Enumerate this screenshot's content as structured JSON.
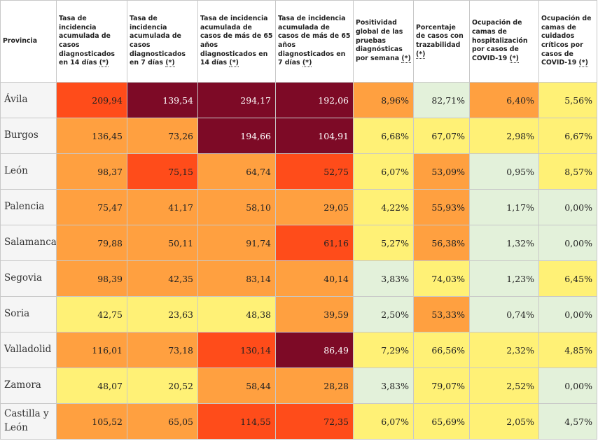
{
  "headers": [
    {
      "text": "Provincia",
      "star": ""
    },
    {
      "text": "Tasa de incidencia acumulada de casos diagnosticados en 14 días ",
      "star": "(*)"
    },
    {
      "text": "Tasa de incidencia acumulada de casos diagnosticados en 7 días ",
      "star": "(*)"
    },
    {
      "text": "Tasa de incidencia acumulada de casos de más de 65 años diagnosticados en 14 días ",
      "star": "(*)"
    },
    {
      "text": "Tasa de incidencia acumulada de casos de más de 65 años diagnosticados en 7 días ",
      "star": "(*)"
    },
    {
      "text": "Positividad global de las pruebas diagnósticas por semana ",
      "star": "(*)"
    },
    {
      "text": "Porcentaje de casos con trazabilidad ",
      "star": "(*)"
    },
    {
      "text": "Ocupación de camas de hospitalización por casos de COVID-19 ",
      "star": "(*)"
    },
    {
      "text": "Ocupación de camas de cuidados críticos por casos de COVID-19 ",
      "star": "(*)"
    }
  ],
  "rows": [
    {
      "province": "Ávila",
      "cells": [
        {
          "v": "209,94",
          "level": 3
        },
        {
          "v": "139,54",
          "level": 4
        },
        {
          "v": "294,17",
          "level": 4
        },
        {
          "v": "192,06",
          "level": 4
        },
        {
          "v": "8,96%",
          "level": 2
        },
        {
          "v": "82,71%",
          "level": 0
        },
        {
          "v": "6,40%",
          "level": 2
        },
        {
          "v": "5,56%",
          "level": 1
        }
      ]
    },
    {
      "province": "Burgos",
      "cells": [
        {
          "v": "136,45",
          "level": 2
        },
        {
          "v": "73,26",
          "level": 2
        },
        {
          "v": "194,66",
          "level": 4
        },
        {
          "v": "104,91",
          "level": 4
        },
        {
          "v": "6,68%",
          "level": 1
        },
        {
          "v": "67,07%",
          "level": 1
        },
        {
          "v": "2,98%",
          "level": 1
        },
        {
          "v": "6,67%",
          "level": 1
        }
      ]
    },
    {
      "province": "León",
      "cells": [
        {
          "v": "98,37",
          "level": 2
        },
        {
          "v": "75,15",
          "level": 3
        },
        {
          "v": "64,74",
          "level": 2
        },
        {
          "v": "52,75",
          "level": 3
        },
        {
          "v": "6,07%",
          "level": 1
        },
        {
          "v": "53,09%",
          "level": 2
        },
        {
          "v": "0,95%",
          "level": 0
        },
        {
          "v": "8,57%",
          "level": 1
        }
      ]
    },
    {
      "province": "Palencia",
      "cells": [
        {
          "v": "75,47",
          "level": 2
        },
        {
          "v": "41,17",
          "level": 2
        },
        {
          "v": "58,10",
          "level": 2
        },
        {
          "v": "29,05",
          "level": 2
        },
        {
          "v": "4,22%",
          "level": 1
        },
        {
          "v": "55,93%",
          "level": 2
        },
        {
          "v": "1,17%",
          "level": 0
        },
        {
          "v": "0,00%",
          "level": 0
        }
      ]
    },
    {
      "province": "Salamanca",
      "cells": [
        {
          "v": "79,88",
          "level": 2
        },
        {
          "v": "50,11",
          "level": 2
        },
        {
          "v": "91,74",
          "level": 2
        },
        {
          "v": "61,16",
          "level": 3
        },
        {
          "v": "5,27%",
          "level": 1
        },
        {
          "v": "56,38%",
          "level": 2
        },
        {
          "v": "1,32%",
          "level": 0
        },
        {
          "v": "0,00%",
          "level": 0
        }
      ]
    },
    {
      "province": "Segovia",
      "cells": [
        {
          "v": "98,39",
          "level": 2
        },
        {
          "v": "42,35",
          "level": 2
        },
        {
          "v": "83,14",
          "level": 2
        },
        {
          "v": "40,14",
          "level": 2
        },
        {
          "v": "3,83%",
          "level": 0
        },
        {
          "v": "74,03%",
          "level": 1
        },
        {
          "v": "1,23%",
          "level": 0
        },
        {
          "v": "6,45%",
          "level": 1
        }
      ]
    },
    {
      "province": "Soria",
      "cells": [
        {
          "v": "42,75",
          "level": 1
        },
        {
          "v": "23,63",
          "level": 1
        },
        {
          "v": "48,38",
          "level": 1
        },
        {
          "v": "39,59",
          "level": 2
        },
        {
          "v": "2,50%",
          "level": 0
        },
        {
          "v": "53,33%",
          "level": 2
        },
        {
          "v": "0,74%",
          "level": 0
        },
        {
          "v": "0,00%",
          "level": 0
        }
      ]
    },
    {
      "province": "Valladolid",
      "cells": [
        {
          "v": "116,01",
          "level": 2
        },
        {
          "v": "73,18",
          "level": 2
        },
        {
          "v": "130,14",
          "level": 3
        },
        {
          "v": "86,49",
          "level": 4
        },
        {
          "v": "7,29%",
          "level": 1
        },
        {
          "v": "66,56%",
          "level": 1
        },
        {
          "v": "2,32%",
          "level": 1
        },
        {
          "v": "4,85%",
          "level": 1
        }
      ]
    },
    {
      "province": "Zamora",
      "cells": [
        {
          "v": "48,07",
          "level": 1
        },
        {
          "v": "20,52",
          "level": 1
        },
        {
          "v": "58,44",
          "level": 2
        },
        {
          "v": "28,28",
          "level": 2
        },
        {
          "v": "3,83%",
          "level": 0
        },
        {
          "v": "79,07%",
          "level": 1
        },
        {
          "v": "2,52%",
          "level": 1
        },
        {
          "v": "0,00%",
          "level": 0
        }
      ]
    },
    {
      "province": "Castilla y León",
      "cells": [
        {
          "v": "105,52",
          "level": 2
        },
        {
          "v": "65,05",
          "level": 2
        },
        {
          "v": "114,55",
          "level": 3
        },
        {
          "v": "72,35",
          "level": 3
        },
        {
          "v": "6,07%",
          "level": 1
        },
        {
          "v": "65,69%",
          "level": 1
        },
        {
          "v": "2,05%",
          "level": 1
        },
        {
          "v": "4,57%",
          "level": 0
        }
      ]
    }
  ],
  "level_colors": {
    "0": "#e3f1da",
    "1": "#fff176",
    "2": "#ffa040",
    "3": "#ff4c1a",
    "4": "#7d0a26"
  }
}
